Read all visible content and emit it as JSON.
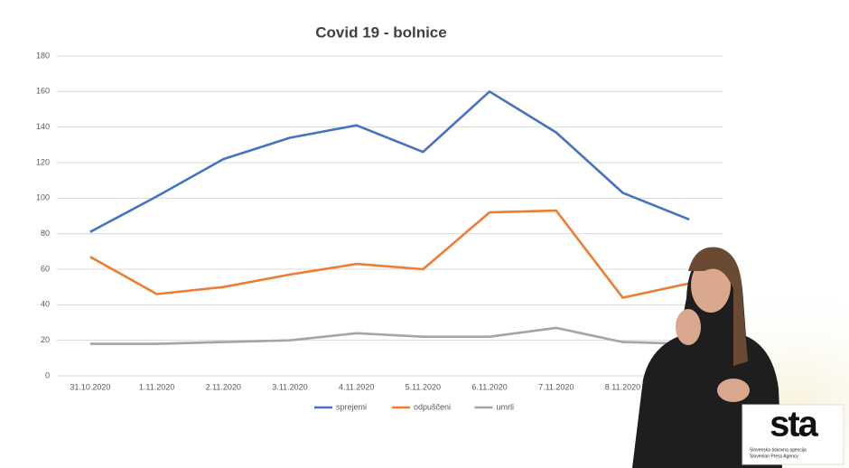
{
  "chart_data": {
    "type": "line",
    "title": "Covid 19 - bolnice",
    "categories": [
      "31.10.2020",
      "1.11.2020",
      "2.11.2020",
      "3.11.2020",
      "4.11.2020",
      "5.11.2020",
      "6.11.2020",
      "7.11.2020",
      "8.11.2020",
      null
    ],
    "series": [
      {
        "name": "sprejemi",
        "color": "#4472c4",
        "values": [
          81,
          101,
          122,
          134,
          141,
          126,
          160,
          137,
          103,
          88
        ]
      },
      {
        "name": "odpuščeni",
        "color": "#ed7d31",
        "values": [
          67,
          46,
          50,
          57,
          63,
          60,
          92,
          93,
          44,
          52
        ]
      },
      {
        "name": "umrli",
        "color": "#a5a5a5",
        "values": [
          18,
          18,
          19,
          20,
          24,
          22,
          22,
          27,
          19,
          18
        ]
      }
    ],
    "ylim": [
      0,
      180
    ],
    "yticks": [
      0,
      20,
      40,
      60,
      80,
      100,
      120,
      140,
      160,
      180
    ],
    "grid": true,
    "legend": "bottom"
  },
  "logo": {
    "name": "sta",
    "line1": "Slovenska tiskovna agencija",
    "line2": "Slovenian Press Agency"
  }
}
